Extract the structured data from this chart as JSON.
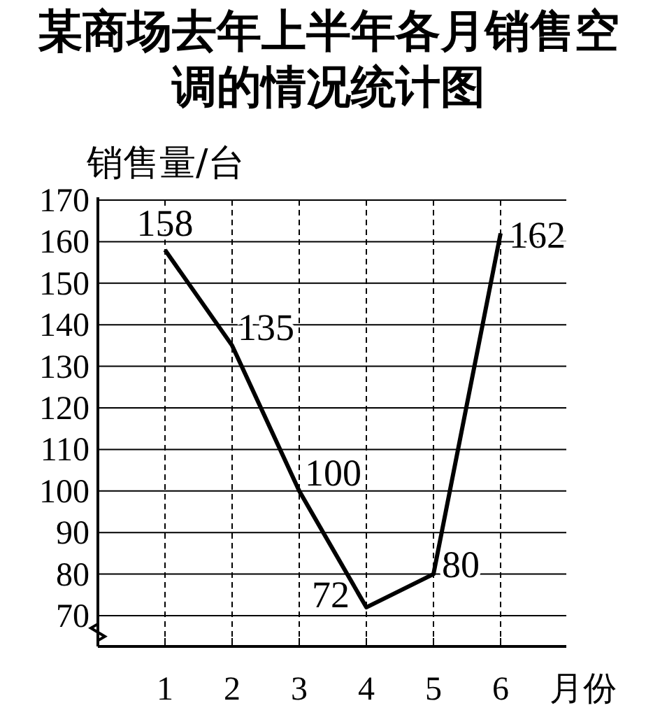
{
  "chart_data": {
    "type": "line",
    "title": "某商场去年上半年各月销售空调的情况统计图",
    "xlabel": "月份",
    "ylabel": "销售量/台",
    "categories": [
      "1",
      "2",
      "3",
      "4",
      "5",
      "6"
    ],
    "series": [
      {
        "color": "#000000",
        "values": [
          158,
          135,
          100,
          72,
          80,
          162
        ]
      }
    ],
    "ylim": [
      62,
      170
    ],
    "yticks": [
      70,
      80,
      90,
      100,
      110,
      120,
      130,
      140,
      150,
      160,
      170
    ],
    "grid": true,
    "data_labels": true,
    "marker": "none",
    "line_style": "solid"
  }
}
